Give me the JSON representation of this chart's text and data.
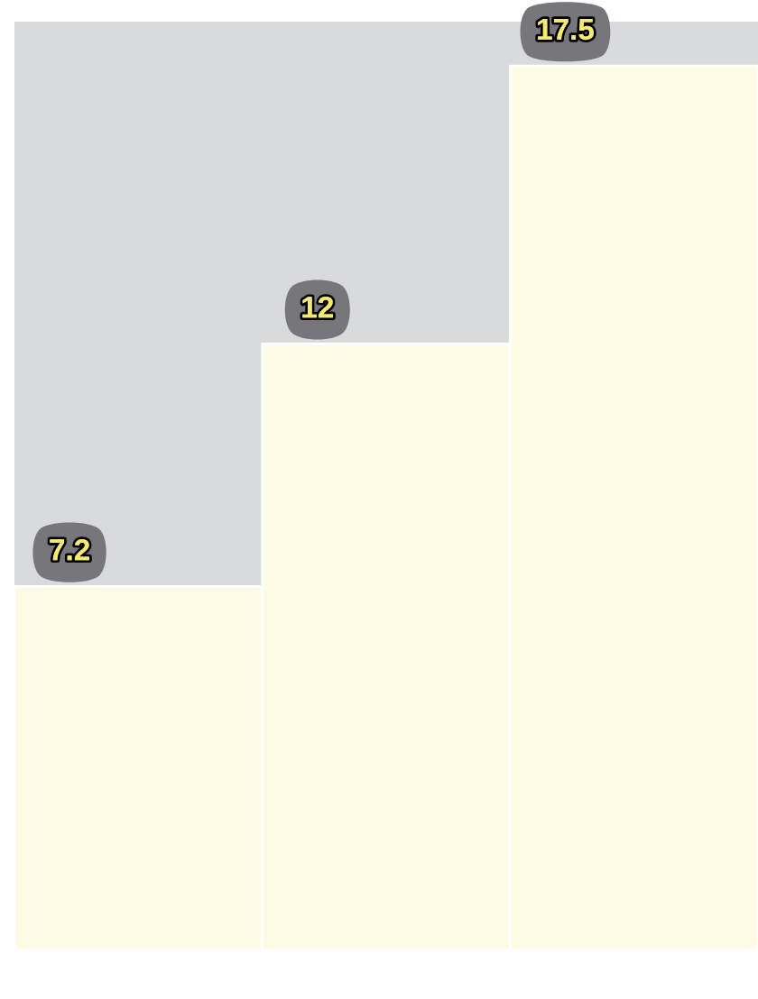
{
  "chart_data": {
    "type": "bar",
    "categories": [
      null,
      null,
      null
    ],
    "values": [
      7.2,
      12,
      17.5
    ],
    "color": "#fdfbe3",
    "data_labels": true,
    "tick_labels": false
  }
}
